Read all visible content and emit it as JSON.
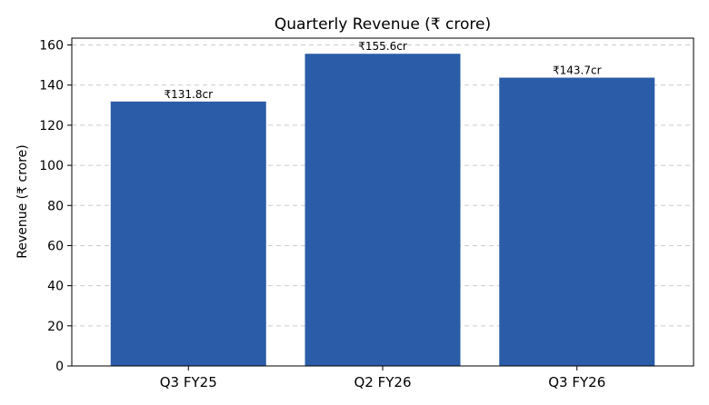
{
  "chart_data": {
    "type": "bar",
    "title": "Quarterly Revenue (₹ crore)",
    "xlabel": "",
    "ylabel": "Revenue (₹ crore)",
    "categories": [
      "Q3 FY25",
      "Q2 FY26",
      "Q3 FY26"
    ],
    "values": [
      131.8,
      155.6,
      143.7
    ],
    "data_labels": [
      "₹131.8cr",
      "₹155.6cr",
      "₹143.7cr"
    ],
    "ylim": [
      0,
      163.4
    ],
    "yticks": [
      0,
      20,
      40,
      60,
      80,
      100,
      120,
      140,
      160
    ],
    "grid": true,
    "bar_color": "#2b5ca7"
  }
}
